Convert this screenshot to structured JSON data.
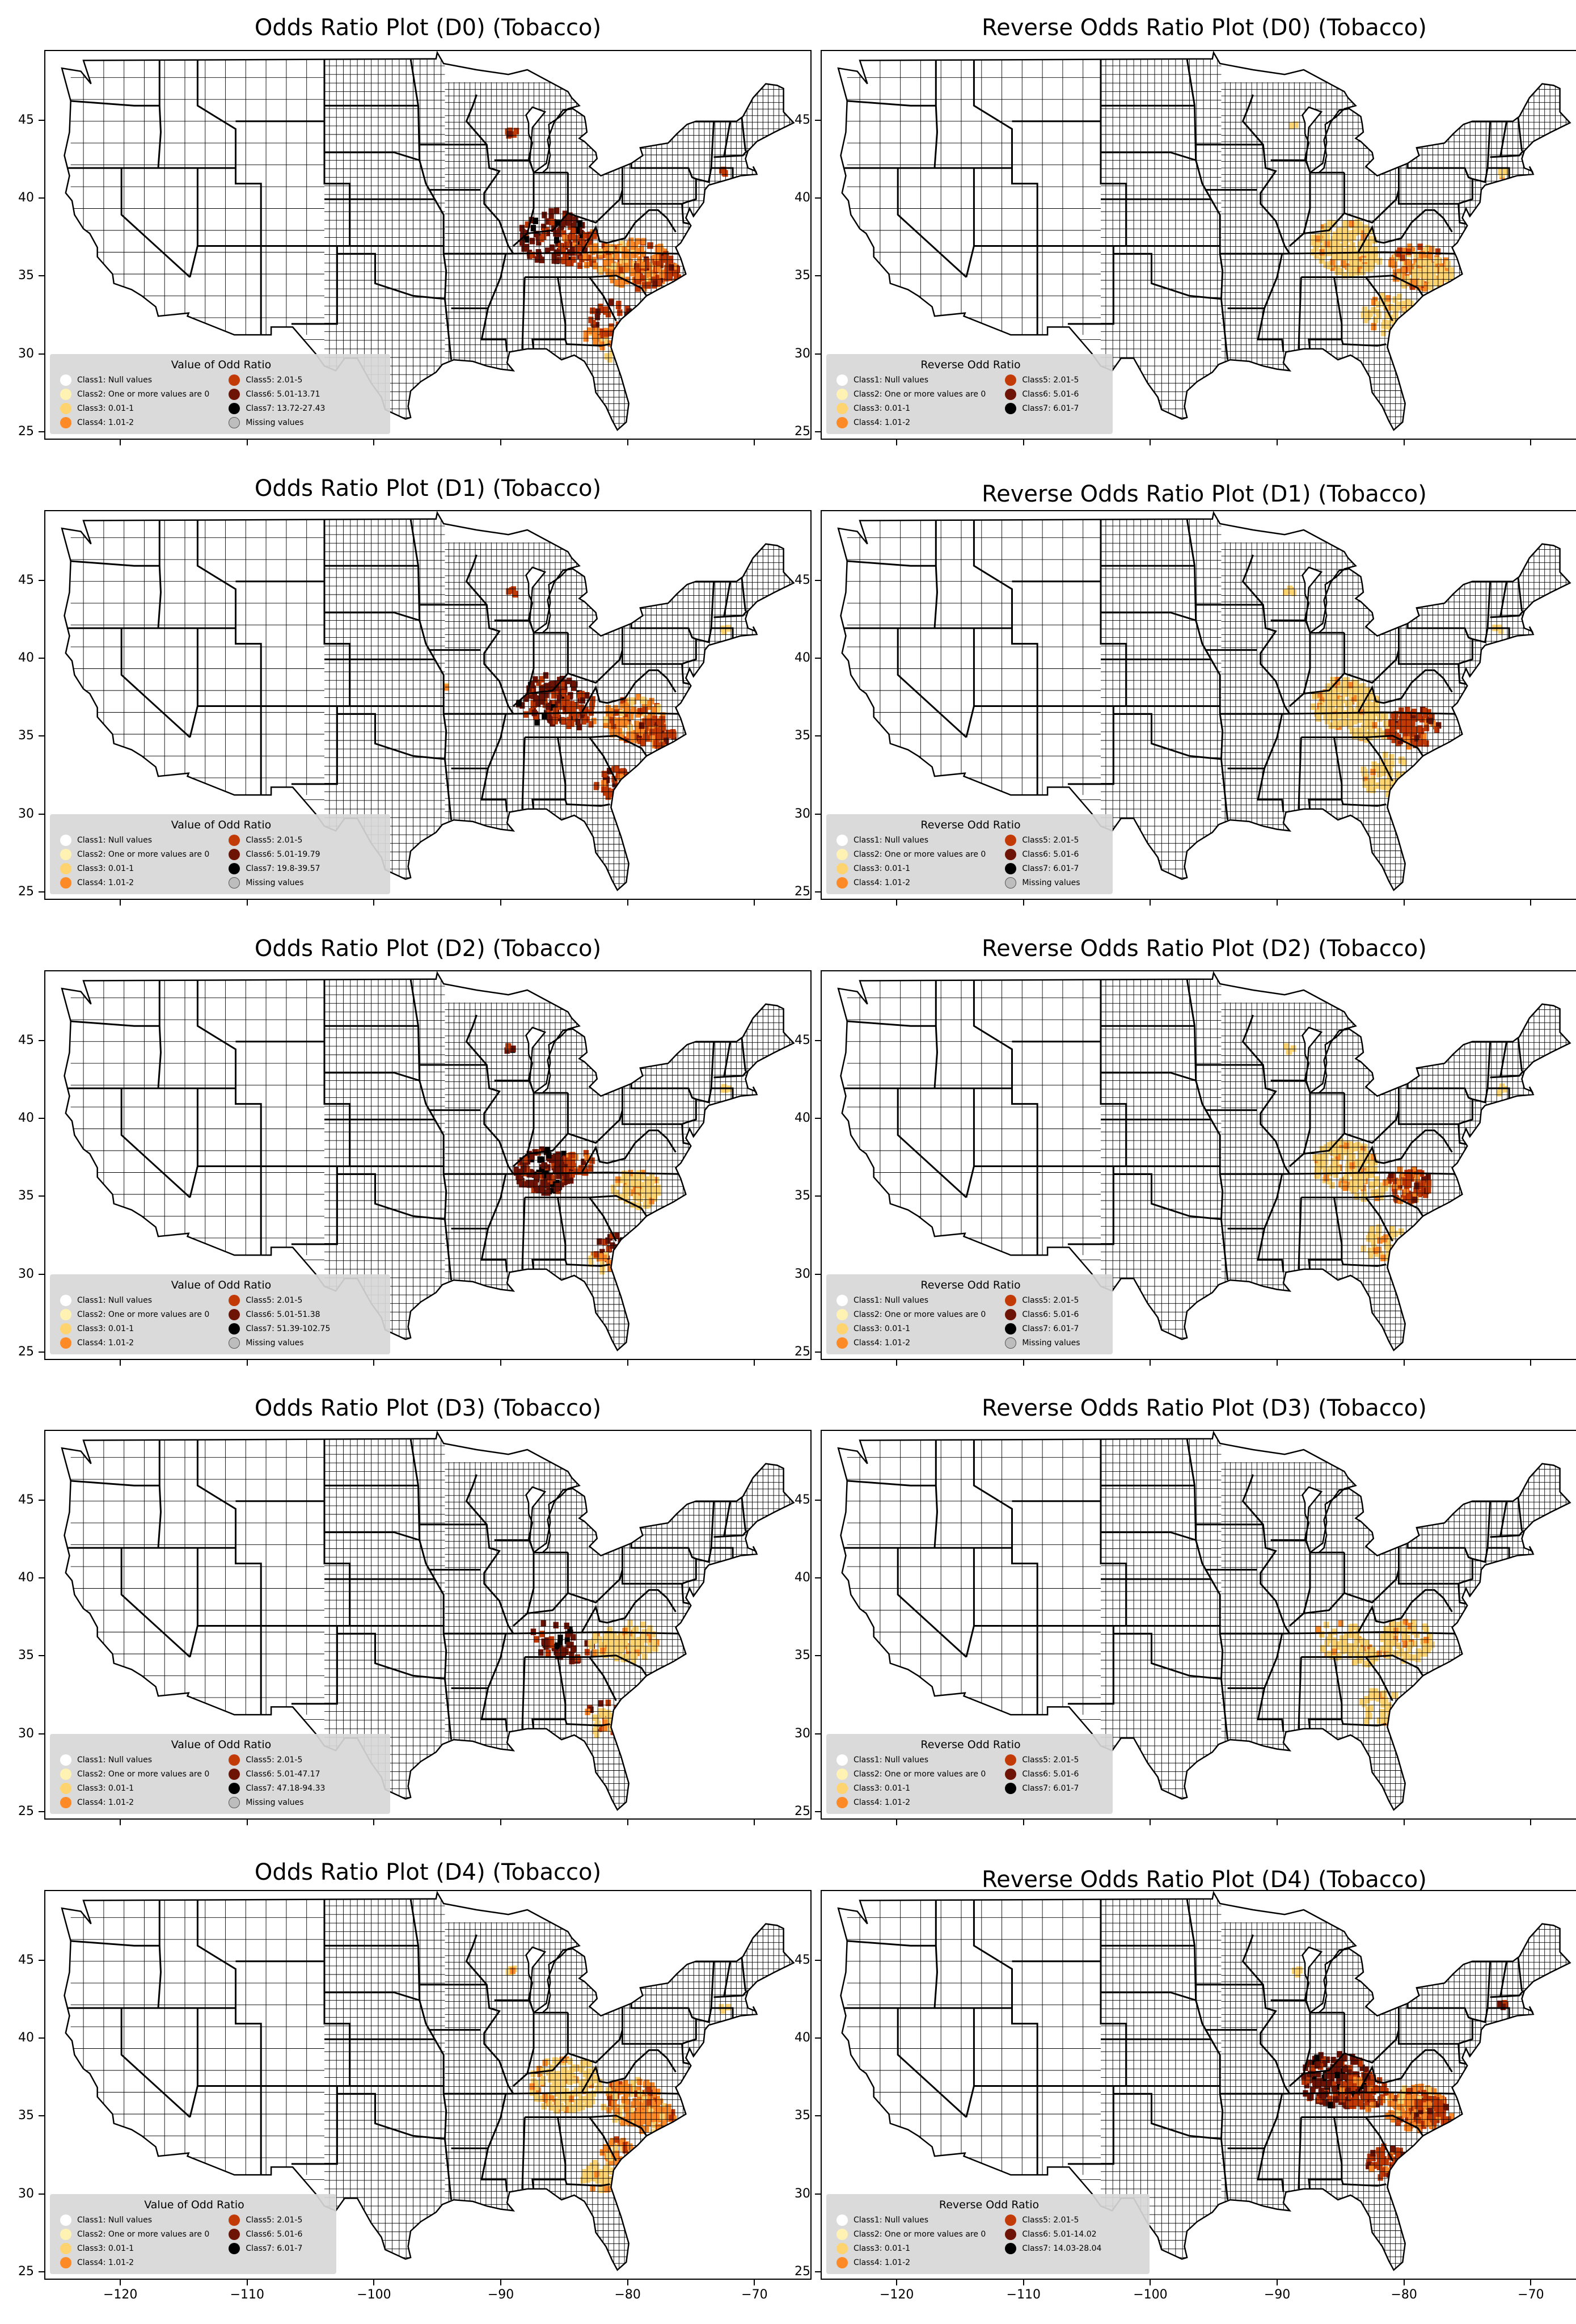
{
  "colors": {
    "class1": "#ffffff",
    "class2": "#fff2b2",
    "class3": "#fed470",
    "class4": "#fd8a26",
    "class5": "#c23a06",
    "class6": "#6e1406",
    "class7": "#000000",
    "missing": "#bdbdbd"
  },
  "axes": {
    "x_ticks": [
      "−120",
      "−110",
      "−100",
      "−90",
      "−80",
      "−70"
    ],
    "y_ticks": [
      "45",
      "40",
      "35",
      "30",
      "25"
    ],
    "xlim": [
      -126,
      -65.5
    ],
    "ylim": [
      24.5,
      49.5
    ]
  },
  "panels": [
    {
      "title": "Odds Ratio Plot (D0) (Tobacco)",
      "legend": {
        "title": "Value of Odd Ratio",
        "col1": [
          "Class1: Null values",
          "Class2: One or more values are 0",
          "Class3: 0.01-1",
          "Class4: 1.01-2"
        ],
        "col2": [
          "Class5: 2.01-5",
          "Class6: 5.01-13.71",
          "Class7: 13.72-27.43",
          "Missing values"
        ]
      }
    },
    {
      "title": "Reverse Odds Ratio Plot (D0) (Tobacco)",
      "legend": {
        "title": "Reverse Odd Ratio",
        "col1": [
          "Class1: Null values",
          "Class2: One or more values are 0",
          "Class3: 0.01-1",
          "Class4: 1.01-2"
        ],
        "col2": [
          "Class5: 2.01-5",
          "Class6: 5.01-6",
          "Class7: 6.01-7"
        ]
      }
    },
    {
      "title": "Odds Ratio Plot (D1) (Tobacco)",
      "legend": {
        "title": "Value of Odd Ratio",
        "col1": [
          "Class1: Null values",
          "Class2: One or more values are 0",
          "Class3: 0.01-1",
          "Class4: 1.01-2"
        ],
        "col2": [
          "Class5: 2.01-5",
          "Class6: 5.01-19.79",
          "Class7: 19.8-39.57",
          "Missing values"
        ]
      }
    },
    {
      "title": "Reverse Odds Ratio Plot (D1) (Tobacco)",
      "legend": {
        "title": "Reverse Odd Ratio",
        "col1": [
          "Class1: Null values",
          "Class2: One or more values are 0",
          "Class3: 0.01-1",
          "Class4: 1.01-2"
        ],
        "col2": [
          "Class5: 2.01-5",
          "Class6: 5.01-6",
          "Class7: 6.01-7",
          "Missing values"
        ]
      }
    },
    {
      "title": "Odds Ratio Plot (D2) (Tobacco)",
      "legend": {
        "title": "Value of Odd Ratio",
        "col1": [
          "Class1: Null values",
          "Class2: One or more values are 0",
          "Class3: 0.01-1",
          "Class4: 1.01-2"
        ],
        "col2": [
          "Class5: 2.01-5",
          "Class6: 5.01-51.38",
          "Class7: 51.39-102.75",
          "Missing values"
        ]
      }
    },
    {
      "title": "Reverse Odds Ratio Plot (D2) (Tobacco)",
      "legend": {
        "title": "Reverse Odd Ratio",
        "col1": [
          "Class1: Null values",
          "Class2: One or more values are 0",
          "Class3: 0.01-1",
          "Class4: 1.01-2"
        ],
        "col2": [
          "Class5: 2.01-5",
          "Class6: 5.01-6",
          "Class7: 6.01-7",
          "Missing values"
        ]
      }
    },
    {
      "title": "Odds Ratio Plot (D3) (Tobacco)",
      "legend": {
        "title": "Value of Odd Ratio",
        "col1": [
          "Class1: Null values",
          "Class2: One or more values are 0",
          "Class3: 0.01-1",
          "Class4: 1.01-2"
        ],
        "col2": [
          "Class5: 2.01-5",
          "Class6: 5.01-47.17",
          "Class7: 47.18-94.33",
          "Missing values"
        ]
      }
    },
    {
      "title": "Reverse Odds Ratio Plot (D3) (Tobacco)",
      "legend": {
        "title": "Reverse Odd Ratio",
        "col1": [
          "Class1: Null values",
          "Class2: One or more values are 0",
          "Class3: 0.01-1",
          "Class4: 1.01-2"
        ],
        "col2": [
          "Class5: 2.01-5",
          "Class6: 5.01-6",
          "Class7: 6.01-7"
        ]
      }
    },
    {
      "title": "Odds Ratio Plot (D4) (Tobacco)",
      "legend": {
        "title": "Value of Odd Ratio",
        "col1": [
          "Class1: Null values",
          "Class2: One or more values are 0",
          "Class3: 0.01-1",
          "Class4: 1.01-2"
        ],
        "col2": [
          "Class5: 2.01-5",
          "Class6: 5.01-6",
          "Class7: 6.01-7"
        ]
      }
    },
    {
      "title": "Reverse Odds Ratio Plot (D4) (Tobacco)",
      "legend": {
        "title": "Reverse Odd Ratio",
        "col1": [
          "Class1: Null values",
          "Class2: One or more values are 0",
          "Class3: 0.01-1",
          "Class4: 1.01-2"
        ],
        "col2": [
          "Class5: 2.01-5",
          "Class6: 5.01-14.02",
          "Class7: 14.03-28.04"
        ]
      }
    }
  ]
}
